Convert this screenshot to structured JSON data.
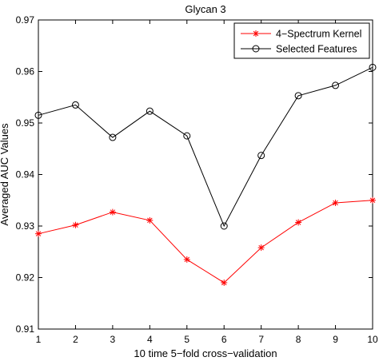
{
  "chart_data": {
    "type": "line",
    "title": "Glycan 3",
    "xlabel": "10 time 5−fold cross−validation",
    "ylabel": "Averaged AUC Values",
    "x": [
      1,
      2,
      3,
      4,
      5,
      6,
      7,
      8,
      9,
      10
    ],
    "xlim": [
      1,
      10
    ],
    "ylim": [
      0.91,
      0.97
    ],
    "xticks": [
      "1",
      "2",
      "3",
      "4",
      "5",
      "6",
      "7",
      "8",
      "9",
      "10"
    ],
    "yticks": [
      "0.91",
      "0.92",
      "0.93",
      "0.94",
      "0.95",
      "0.96",
      "0.97"
    ],
    "grid": false,
    "legend_position": "top-right",
    "series": [
      {
        "name": "4−Spectrum Kernel",
        "color": "#ff0000",
        "marker": "asterisk",
        "values": [
          0.9285,
          0.9302,
          0.9327,
          0.9311,
          0.9235,
          0.919,
          0.9258,
          0.9307,
          0.9345,
          0.935
        ]
      },
      {
        "name": "Selected Features",
        "color": "#000000",
        "marker": "circle",
        "values": [
          0.9515,
          0.9535,
          0.9472,
          0.9523,
          0.9475,
          0.93,
          0.9437,
          0.9553,
          0.9573,
          0.9608
        ]
      }
    ]
  }
}
